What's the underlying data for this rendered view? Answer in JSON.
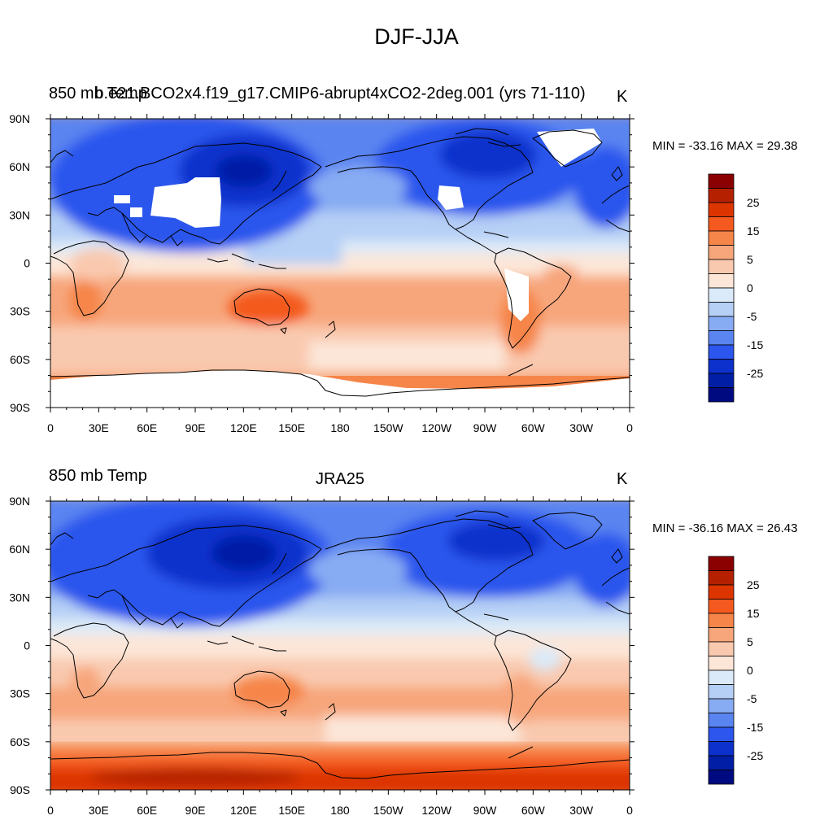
{
  "title": "DJF-JJA",
  "panels": [
    {
      "variable": "850 mb Temp",
      "case": "b.e21.BCO2x4.f19_g17.CMIP6-abrupt4xCO2-2deg.001 (yrs 71-110)",
      "units": "K",
      "minmax": "MIN = -33.16 MAX =  29.38"
    },
    {
      "variable": "850 mb Temp",
      "case": "JRA25",
      "units": "K",
      "minmax": "MIN = -36.16 MAX =  26.43"
    }
  ],
  "axes": {
    "lat_ticks": [
      "90N",
      "60N",
      "30N",
      "0",
      "30S",
      "60S",
      "90S"
    ],
    "lon_ticks": [
      "0",
      "30E",
      "60E",
      "90E",
      "120E",
      "150E",
      "180",
      "150W",
      "120W",
      "90W",
      "60W",
      "30W",
      "0"
    ]
  },
  "colorbar": {
    "labels": [
      "25",
      "15",
      "5",
      "0",
      "-5",
      "-15",
      "-25"
    ],
    "colors": [
      "#8b0000",
      "#b52100",
      "#dd3500",
      "#f45a1f",
      "#f68549",
      "#f7a67c",
      "#f9c9af",
      "#fce6d8",
      "#dbeaf8",
      "#b5cff5",
      "#88acf3",
      "#5a84f0",
      "#2c56ed",
      "#0d31cc",
      "#001ea6",
      "#000a80"
    ]
  },
  "palette": {
    "deep_blue": "#0d31cc",
    "blue": "#2c56ed",
    "mid_blue": "#5a84f0",
    "light_blue": "#88acf3",
    "pale_blue": "#b5cff5",
    "paler_blue": "#dbeaf8",
    "cream": "#fce6d8",
    "peach": "#f9c9af",
    "salmon": "#f7a67c",
    "orange": "#f68549",
    "red_orange": "#f45a1f",
    "red": "#dd3500",
    "dark_red": "#b52100",
    "missing": "#ffffff"
  }
}
